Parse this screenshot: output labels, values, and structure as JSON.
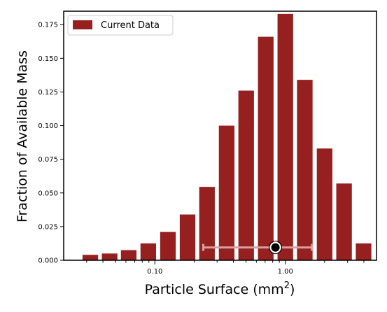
{
  "chart_data": {
    "type": "bar",
    "xscale": "log",
    "xlim": [
      0.02,
      5.0
    ],
    "ylim": [
      0,
      0.185
    ],
    "xlabel": "Particle Surface (mm",
    "xlabel_sup": "2",
    "xlabel_end": ")",
    "ylabel": "Fraction of Available Mass",
    "x_ticks": [
      {
        "value": 0.1,
        "label": "0.10"
      },
      {
        "value": 1.0,
        "label": "1.00"
      }
    ],
    "y_ticks": [
      {
        "value": 0.0,
        "label": "0.000"
      },
      {
        "value": 0.025,
        "label": "0.025"
      },
      {
        "value": 0.05,
        "label": "0.050"
      },
      {
        "value": 0.075,
        "label": "0.075"
      },
      {
        "value": 0.1,
        "label": "0.100"
      },
      {
        "value": 0.125,
        "label": "0.125"
      },
      {
        "value": 0.15,
        "label": "0.150"
      },
      {
        "value": 0.175,
        "label": "0.175"
      }
    ],
    "series": [
      {
        "name": "Current Data",
        "color": "#962020",
        "x": [
          0.032,
          0.045,
          0.063,
          0.089,
          0.126,
          0.178,
          0.251,
          0.355,
          0.501,
          0.708,
          1.0,
          1.41,
          2.0,
          2.82,
          3.98
        ],
        "values": [
          0.004,
          0.005,
          0.0075,
          0.0125,
          0.021,
          0.034,
          0.0545,
          0.1,
          0.126,
          0.166,
          0.183,
          0.134,
          0.083,
          0.057,
          0.0125
        ]
      }
    ],
    "marker": {
      "x": 0.84,
      "y": 0.0095,
      "xerr_low": 0.235,
      "xerr_high": 1.6,
      "color": "#000000",
      "errorbar_color": "#d9a0a0"
    },
    "legend": {
      "position": "top-left",
      "entries": [
        "Current Data"
      ]
    },
    "grid": false
  }
}
